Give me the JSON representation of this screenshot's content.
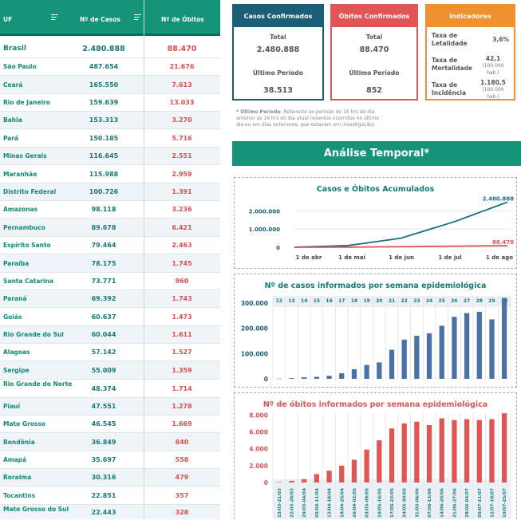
{
  "table": {
    "headers": {
      "uf": "UF",
      "casos": "Nº de Casos",
      "obitos": "Nº de Óbitos"
    },
    "rows": [
      {
        "uf": "Brasil",
        "casos": "2.480.888",
        "obitos": "88.470"
      },
      {
        "uf": "São Paulo",
        "casos": "487.654",
        "obitos": "21.676"
      },
      {
        "uf": "Ceará",
        "casos": "165.550",
        "obitos": "7.613"
      },
      {
        "uf": "Rio de Janeiro",
        "casos": "159.639",
        "obitos": "13.033"
      },
      {
        "uf": "Bahia",
        "casos": "153.313",
        "obitos": "3.270"
      },
      {
        "uf": "Pará",
        "casos": "150.185",
        "obitos": "5.716"
      },
      {
        "uf": "Minas Gerais",
        "casos": "116.645",
        "obitos": "2.551"
      },
      {
        "uf": "Maranhão",
        "casos": "115.988",
        "obitos": "2.959"
      },
      {
        "uf": "Distrito Federal",
        "casos": "100.726",
        "obitos": "1.391"
      },
      {
        "uf": "Amazonas",
        "casos": "98.118",
        "obitos": "3.236"
      },
      {
        "uf": "Pernambuco",
        "casos": "89.678",
        "obitos": "6.421"
      },
      {
        "uf": "Espírito Santo",
        "casos": "79.464",
        "obitos": "2.463"
      },
      {
        "uf": "Paraíba",
        "casos": "78.175",
        "obitos": "1.745"
      },
      {
        "uf": "Santa Catarina",
        "casos": "73.771",
        "obitos": "960"
      },
      {
        "uf": "Paraná",
        "casos": "69.392",
        "obitos": "1.743"
      },
      {
        "uf": "Goiás",
        "casos": "60.637",
        "obitos": "1.473"
      },
      {
        "uf": "Rio Grande do Sul",
        "casos": "60.044",
        "obitos": "1.611"
      },
      {
        "uf": "Alagoas",
        "casos": "57.142",
        "obitos": "1.527"
      },
      {
        "uf": "Sergipe",
        "casos": "55.009",
        "obitos": "1.359"
      },
      {
        "uf": "Rio Grande do Norte",
        "casos": "48.374",
        "obitos": "1.714"
      },
      {
        "uf": "Piauí",
        "casos": "47.551",
        "obitos": "1.278"
      },
      {
        "uf": "Mato Grosso",
        "casos": "46.545",
        "obitos": "1.669"
      },
      {
        "uf": "Rondônia",
        "casos": "36.849",
        "obitos": "840"
      },
      {
        "uf": "Amapá",
        "casos": "35.697",
        "obitos": "558"
      },
      {
        "uf": "Roraima",
        "casos": "30.316",
        "obitos": "479"
      },
      {
        "uf": "Tocantins",
        "casos": "22.851",
        "obitos": "357"
      },
      {
        "uf": "Mato Grosso do Sul",
        "casos": "22.443",
        "obitos": "328"
      }
    ]
  },
  "cards": {
    "casos": {
      "title": "Casos Confirmados",
      "total_label": "Total",
      "total": "2.480.888",
      "periodo_label": "Último Período",
      "periodo": "38.513"
    },
    "obitos": {
      "title": "Óbitos Confirmados",
      "total_label": "Total",
      "total": "88.470",
      "periodo_label": "Último Período",
      "periodo": "852"
    },
    "indicadores": {
      "title": "Indicadores",
      "letalidade_label": "Taxa de Letalidade",
      "letalidade": "3,6%",
      "mortalidade_label": "Taxa de Mortalidade",
      "mortalidade": "42,1",
      "mortalidade_unit": "(100.000 hab.)",
      "incidencia_label": "Taxa de Incidência",
      "incidencia": "1.180,5",
      "incidencia_unit": "(100.000 hab.)"
    }
  },
  "note": {
    "bold": "* Último Período",
    "text": ": Referente ao período de 16 hrs do dia anterior às 16 hrs do dia atual (eventos ocorridos no último dia ou em dias anteriores, que estavam em investigação)"
  },
  "section_title": "Análise Temporal*",
  "colors": {
    "teal": "#15947a",
    "dark_teal": "#1a5e78",
    "red": "#e25555",
    "orange": "#f0912f",
    "bar_blue": "#4a72a8",
    "bar_red": "#e25555"
  },
  "chart_data": [
    {
      "type": "line",
      "title": "Casos e Óbitos Acumulados",
      "x": [
        "1 de abr",
        "1 de mai",
        "1 de jun",
        "1 de jul",
        "1 de ago"
      ],
      "ylim": [
        0,
        2500000
      ],
      "yticks": [
        "0",
        "1.000.000",
        "2.000.000"
      ],
      "series": [
        {
          "values": [
            5000,
            90000,
            500000,
            1400000,
            2480888
          ],
          "end_label": "2.480.888"
        },
        {
          "values": [
            200,
            6000,
            30000,
            60000,
            88470
          ],
          "end_label": "88.470"
        }
      ]
    },
    {
      "type": "bar",
      "title": "Nº de casos informados por semana epidemiológica",
      "categories": [
        "12",
        "13",
        "14",
        "15",
        "16",
        "17",
        "18",
        "19",
        "20",
        "21",
        "22",
        "23",
        "24",
        "25",
        "26",
        "27",
        "28",
        "29",
        "30"
      ],
      "values": [
        1000,
        3000,
        6000,
        8000,
        12000,
        22000,
        38000,
        55000,
        65000,
        115000,
        155000,
        170000,
        180000,
        210000,
        245000,
        260000,
        265000,
        235000,
        320000
      ],
      "ylim": [
        0,
        350000
      ],
      "yticks": [
        "0",
        "100.000",
        "200.000",
        "300.000"
      ]
    },
    {
      "type": "bar",
      "title": "Nº de óbitos informados por semana epidemiológica",
      "categories": [
        "15/03-21/03",
        "22/03-28/03",
        "29/03-04/04",
        "05/04-11/04",
        "12/04-18/04",
        "19/04-25/04",
        "26/04-02/05",
        "03/05-09/05",
        "10/05-16/05",
        "17/05-23/05",
        "24/05-30/05",
        "31/05-06/06",
        "07/06-13/06",
        "14/06-20/06",
        "21/06-27/06",
        "28/06-04/07",
        "05/07-11/07",
        "12/07-18/07",
        "19/07-25/07"
      ],
      "values": [
        50,
        200,
        400,
        1000,
        1400,
        2000,
        2700,
        3900,
        5000,
        6400,
        7000,
        7200,
        6800,
        7600,
        7400,
        7500,
        7400,
        7500,
        8200
      ],
      "ylim": [
        0,
        8500
      ],
      "yticks": [
        "0",
        "2.000",
        "4.000",
        "6.000",
        "8.000"
      ]
    }
  ]
}
